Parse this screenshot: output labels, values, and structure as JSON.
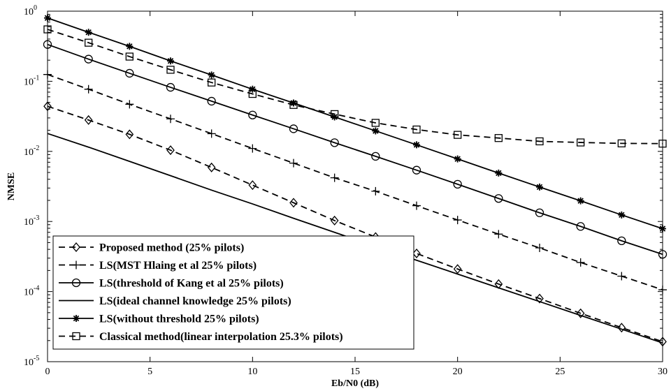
{
  "chart_data": {
    "type": "line",
    "xlabel": "Eb/N0 (dB)",
    "ylabel": "NMSE",
    "y_scale": "log",
    "xlim": [
      0,
      30
    ],
    "ylim": [
      1e-05,
      1
    ],
    "x_ticks": [
      0,
      5,
      10,
      15,
      20,
      25,
      30
    ],
    "y_ticks": [
      {
        "base": "10",
        "exp": "0",
        "value": 1
      },
      {
        "base": "10",
        "exp": "-1",
        "value": 0.1
      },
      {
        "base": "10",
        "exp": "-2",
        "value": 0.01
      },
      {
        "base": "10",
        "exp": "-3",
        "value": 0.001
      },
      {
        "base": "10",
        "exp": "-4",
        "value": 0.0001
      },
      {
        "base": "10",
        "exp": "-5",
        "value": 1e-05
      }
    ],
    "grid": false,
    "legend_position": "bottom-left",
    "x": [
      0,
      2,
      4,
      6,
      8,
      10,
      12,
      14,
      16,
      18,
      20,
      22,
      24,
      26,
      28,
      30
    ],
    "series": [
      {
        "name": "Proposed method (25% pilots)",
        "line_style": "dashed",
        "marker": "diamond",
        "values": [
          0.044,
          0.028,
          0.0175,
          0.0104,
          0.0059,
          0.0033,
          0.00185,
          0.00103,
          0.0006,
          0.00035,
          0.00021,
          0.000128,
          7.95e-05,
          4.9e-05,
          3.06e-05,
          1.93e-05
        ]
      },
      {
        "name": "LS(MST Hlaing et al 25% pilots)",
        "line_style": "dashed",
        "marker": "plus",
        "values": [
          0.125,
          0.077,
          0.047,
          0.0291,
          0.0179,
          0.011,
          0.0068,
          0.0042,
          0.0027,
          0.00168,
          0.00105,
          0.00066,
          0.00042,
          0.00026,
          0.000166,
          0.000106
        ]
      },
      {
        "name": "LS(threshold of Kang et al 25% pilots)",
        "line_style": "solid",
        "marker": "circle",
        "values": [
          0.335,
          0.207,
          0.13,
          0.082,
          0.052,
          0.033,
          0.021,
          0.0133,
          0.0085,
          0.0054,
          0.0034,
          0.00213,
          0.00133,
          0.00085,
          0.00053,
          0.00034
        ]
      },
      {
        "name": "LS(ideal channel knowledge 25% pilots)",
        "line_style": "solid",
        "marker": "none",
        "values": [
          0.018,
          0.0115,
          0.0072,
          0.0045,
          0.0028,
          0.00178,
          0.00111,
          0.0007,
          0.00044,
          0.00028,
          0.000178,
          0.000113,
          7.2e-05,
          4.57e-05,
          2.91e-05,
          1.85e-05
        ]
      },
      {
        "name": "LS(without threshold 25% pilots)",
        "line_style": "solid",
        "marker": "asterisk",
        "values": [
          0.8,
          0.5,
          0.315,
          0.195,
          0.123,
          0.077,
          0.049,
          0.031,
          0.0196,
          0.0124,
          0.0078,
          0.0049,
          0.0031,
          0.00197,
          0.00124,
          0.00079
        ]
      },
      {
        "name": "Classical method(linear interpolation 25.3% pilots)",
        "line_style": "dashed",
        "marker": "square",
        "values": [
          0.55,
          0.355,
          0.225,
          0.146,
          0.096,
          0.066,
          0.046,
          0.034,
          0.0255,
          0.0205,
          0.0172,
          0.0155,
          0.0139,
          0.0134,
          0.013,
          0.0129
        ]
      }
    ]
  }
}
